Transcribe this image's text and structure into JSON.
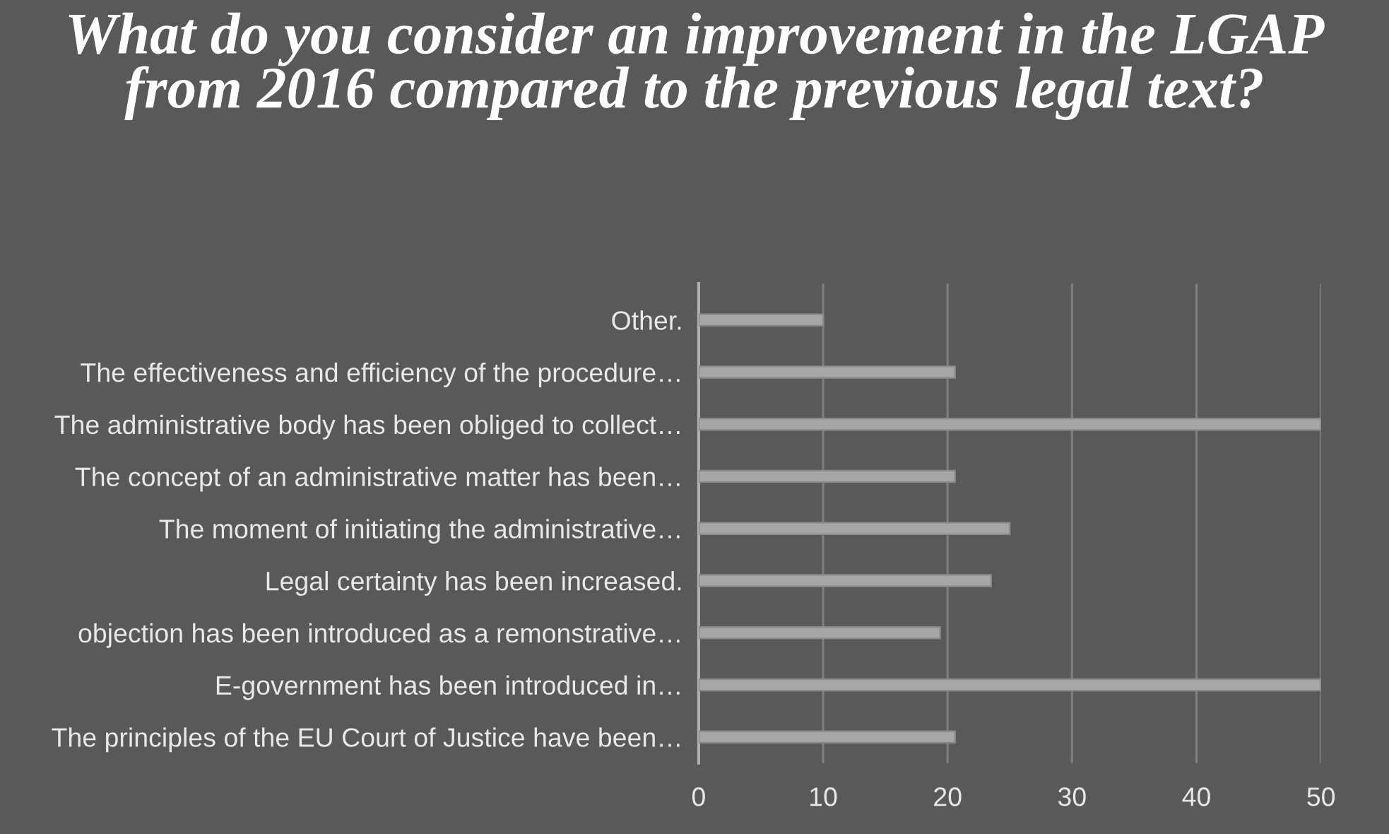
{
  "chart_data": {
    "type": "bar",
    "orientation": "horizontal",
    "title": "What do you consider an improvement in the LGAP from 2016 compared to the previous legal text?",
    "categories": [
      "Other.",
      "The effectiveness and efficiency of the procedure…",
      "The administrative body has been obliged to collect…",
      "The concept of an administrative matter has been…",
      "The moment of initiating the administrative…",
      "Legal certainty has been increased.",
      "objection has been introduced as a remonstrative…",
      "E-government has been introduced in…",
      "The principles of the EU Court of Justice have been…"
    ],
    "values": [
      10,
      20.6,
      50,
      20.6,
      25,
      23.5,
      19.4,
      50,
      20.6
    ],
    "color": "#a6a6a6",
    "xlim": [
      0,
      50
    ],
    "xticks": [
      0,
      10,
      20,
      30,
      40,
      50
    ],
    "grid": "x",
    "legend": false
  }
}
